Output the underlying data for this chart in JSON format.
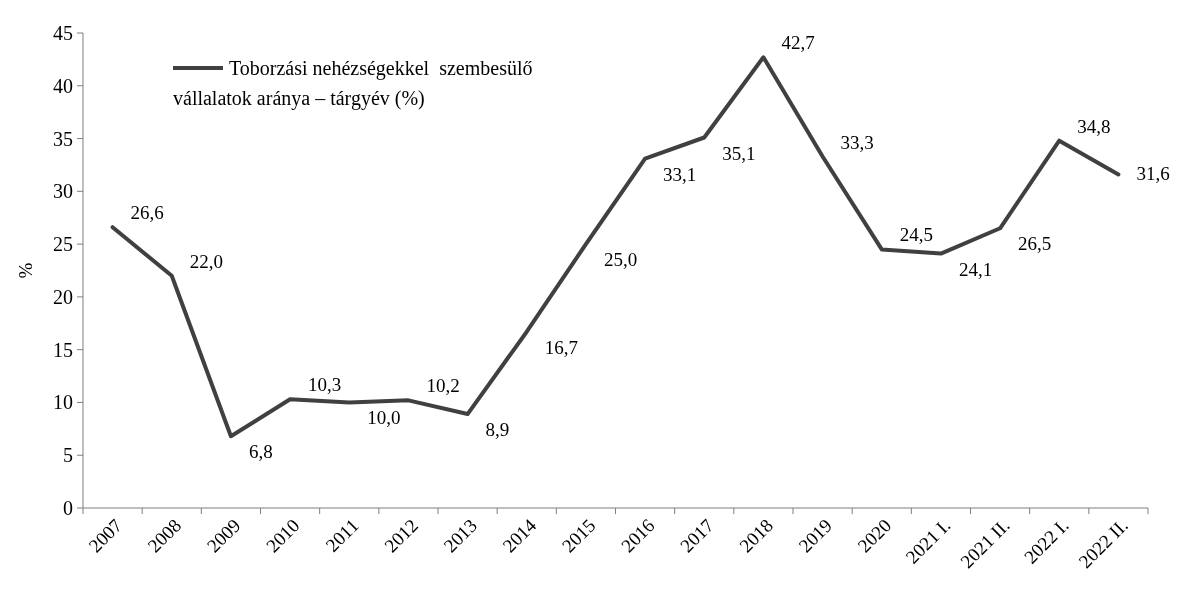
{
  "chart_data": {
    "type": "line",
    "ylabel": "%",
    "categories": [
      "2007",
      "2008",
      "2009",
      "2010",
      "2011",
      "2012",
      "2013",
      "2014",
      "2015",
      "2016",
      "2017",
      "2018",
      "2019",
      "2020",
      "2021 I.",
      "2021 II.",
      "2022 I.",
      "2022 II."
    ],
    "series": [
      {
        "name": "Toborzási nehézségekkel  szembesülő vállalatok aránya – tárgyév (%)",
        "color": "#404040",
        "values": [
          26.6,
          22.0,
          6.8,
          10.3,
          10.0,
          10.2,
          8.9,
          16.7,
          25.0,
          33.1,
          35.1,
          42.7,
          33.3,
          24.5,
          24.1,
          26.5,
          34.8,
          31.6
        ],
        "value_labels": [
          "26,6",
          "22,0",
          "6,8",
          "10,3",
          "10,0",
          "10,2",
          "8,9",
          "16,7",
          "25,0",
          "33,1",
          "35,1",
          "42,7",
          "33,3",
          "24,5",
          "24,1",
          "26,5",
          "34,8",
          "31,6"
        ]
      }
    ],
    "ylim": [
      0,
      45
    ],
    "yticks": [
      0,
      5,
      10,
      15,
      20,
      25,
      30,
      35,
      40,
      45
    ],
    "grid": false,
    "legend": "top left",
    "marker": "none",
    "line_style": "solid"
  }
}
